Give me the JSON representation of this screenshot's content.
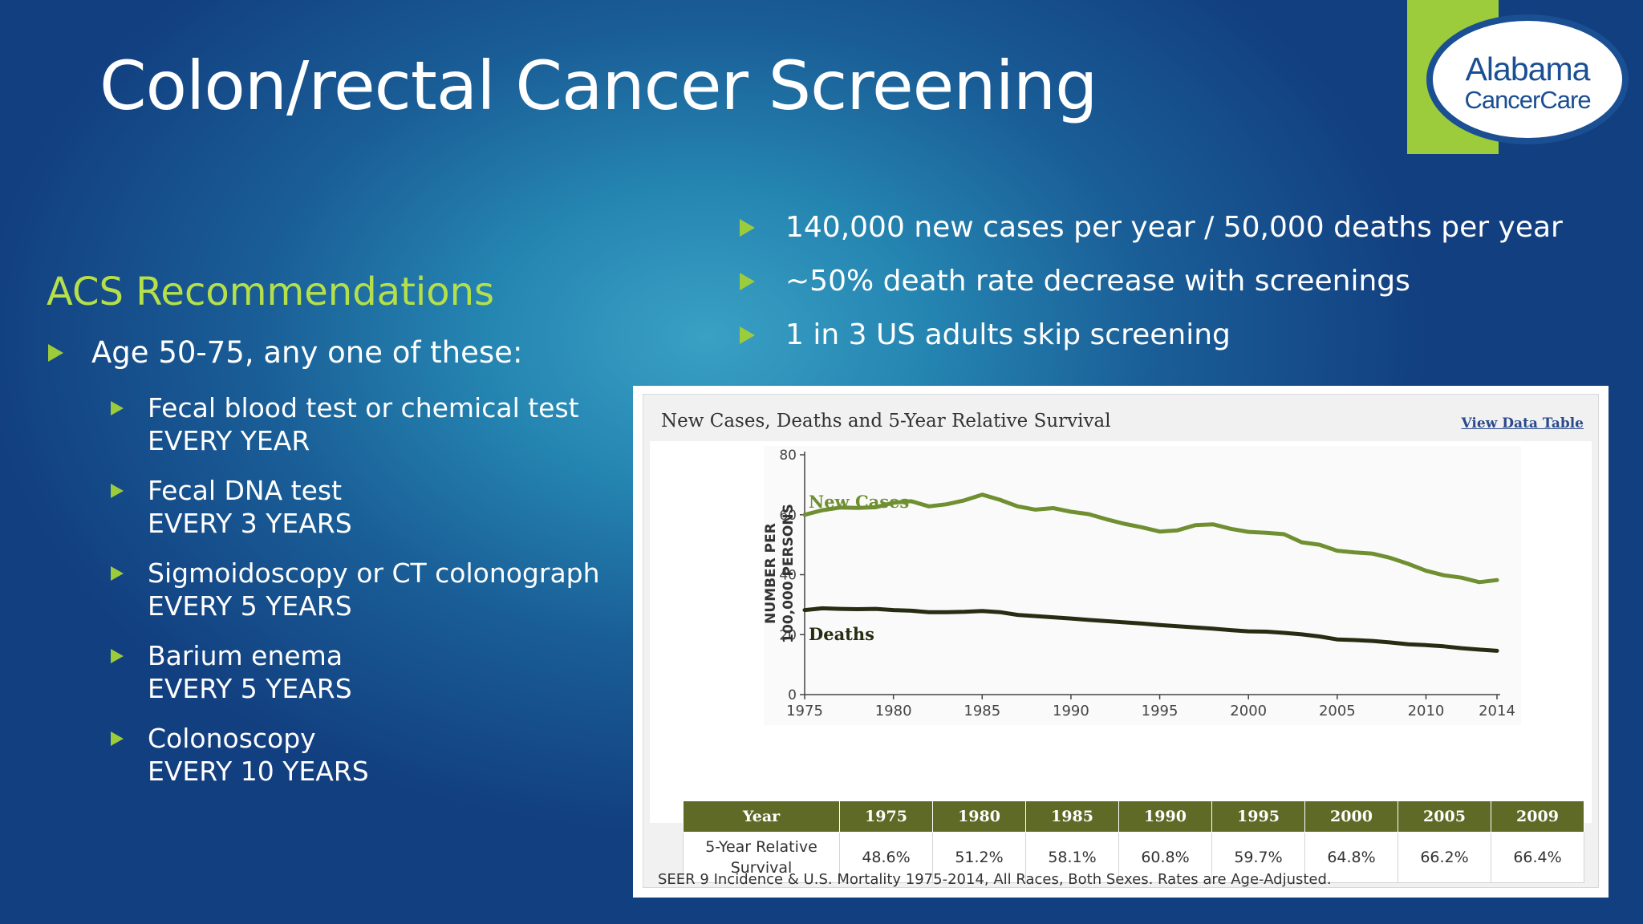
{
  "slide": {
    "title": "Colon/rectal Cancer Screening",
    "logo": {
      "line1": "Alabama",
      "line2": "CancerCare"
    },
    "acs_heading": "ACS Recommendations",
    "age_bullet": "Age 50-75, any one of these:",
    "tests": [
      {
        "line1": "Fecal blood test or chemical test",
        "line2": "EVERY YEAR"
      },
      {
        "line1": "Fecal DNA test",
        "line2": "EVERY 3 YEARS"
      },
      {
        "line1": "Sigmoidoscopy or CT colonograph",
        "line2": "EVERY 5 YEARS"
      },
      {
        "line1": "Barium enema",
        "line2": "EVERY 5 YEARS"
      },
      {
        "line1": "Colonoscopy",
        "line2": "EVERY 10 YEARS"
      }
    ],
    "stats": [
      "140,000 new cases per year / 50,000 deaths per year",
      "~50% death rate decrease with screenings",
      "1 in 3 US adults skip screening"
    ],
    "colors": {
      "accent_green": "#9ccb3b",
      "heading_green": "#b6e04a",
      "cases_line": "#6f8f31",
      "deaths_line": "#262d12",
      "table_header": "#5e6a26"
    },
    "icons": {
      "bullet": "triangle-bullet-icon"
    }
  },
  "chart": {
    "panel_title": "New Cases, Deaths and 5-Year Relative Survival",
    "view_link": "View Data Table",
    "footnote": "SEER 9 Incidence & U.S. Mortality 1975-2014, All Races, Both Sexes. Rates are Age-Adjusted.",
    "table": {
      "header_label": "Year",
      "years": [
        "1975",
        "1980",
        "1985",
        "1990",
        "1995",
        "2000",
        "2005",
        "2009"
      ],
      "row_label_line1": "5-Year Relative",
      "row_label_line2": "Survival",
      "values": [
        "48.6%",
        "51.2%",
        "58.1%",
        "60.8%",
        "59.7%",
        "64.8%",
        "66.2%",
        "66.4%"
      ]
    }
  },
  "chart_data": {
    "type": "line",
    "ylabel": "NUMBER PER 100,000 PERSONS",
    "ylim": [
      0,
      80
    ],
    "yticks": [
      0,
      20,
      40,
      60,
      80
    ],
    "xlim": [
      1975,
      2014
    ],
    "xticks": [
      1975,
      1980,
      1985,
      1990,
      1995,
      2000,
      2005,
      2010,
      2014
    ],
    "grid": false,
    "x": [
      1975,
      1976,
      1977,
      1978,
      1979,
      1980,
      1981,
      1982,
      1983,
      1984,
      1985,
      1986,
      1987,
      1988,
      1989,
      1990,
      1991,
      1992,
      1993,
      1994,
      1995,
      1996,
      1997,
      1998,
      1999,
      2000,
      2001,
      2002,
      2003,
      2004,
      2005,
      2006,
      2007,
      2008,
      2009,
      2010,
      2011,
      2012,
      2013,
      2014
    ],
    "series": [
      {
        "name": "New Cases",
        "values": [
          60.0,
          61.5,
          62.4,
          62.3,
          62.5,
          64.0,
          64.5,
          62.8,
          63.5,
          64.8,
          66.7,
          65.0,
          62.8,
          61.7,
          62.2,
          61.0,
          60.2,
          58.5,
          57.0,
          55.8,
          54.4,
          54.8,
          56.5,
          56.8,
          55.3,
          54.3,
          54.0,
          53.5,
          50.8,
          50.0,
          48.0,
          47.4,
          47.0,
          45.6,
          43.6,
          41.3,
          39.8,
          39.0,
          37.5,
          38.2
        ]
      },
      {
        "name": "Deaths",
        "values": [
          28.2,
          28.8,
          28.6,
          28.5,
          28.6,
          28.2,
          28.0,
          27.5,
          27.5,
          27.6,
          27.9,
          27.5,
          26.6,
          26.2,
          25.8,
          25.4,
          24.9,
          24.5,
          24.1,
          23.7,
          23.2,
          22.8,
          22.4,
          22.0,
          21.5,
          21.1,
          21.0,
          20.6,
          20.1,
          19.4,
          18.4,
          18.2,
          17.9,
          17.4,
          16.8,
          16.5,
          16.1,
          15.5,
          15.0,
          14.6
        ]
      }
    ],
    "series_labels": [
      "New Cases",
      "Deaths"
    ]
  }
}
